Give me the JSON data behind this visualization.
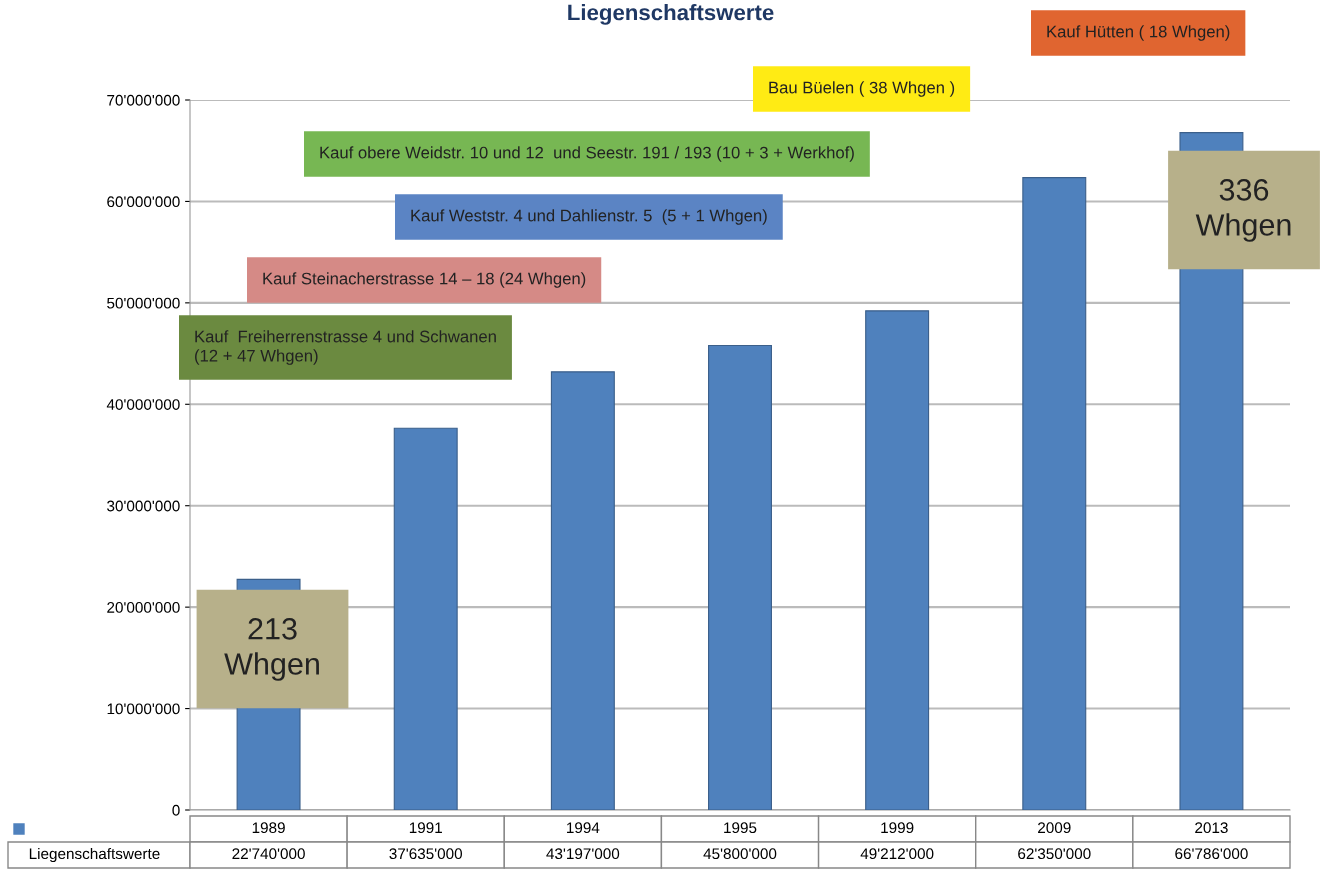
{
  "chart_data": {
    "type": "bar",
    "title": "Liegenschaftswerte",
    "categories": [
      "1989",
      "1991",
      "1994",
      "1995",
      "1999",
      "2009",
      "2013"
    ],
    "series": [
      {
        "name": "Liegenschaftswerte",
        "color": "#4f81bd",
        "values": [
          22740000,
          37635000,
          43197000,
          45800000,
          49212000,
          62350000,
          66786000
        ],
        "value_labels": [
          "22'740'000",
          "37'635'000",
          "43'197'000",
          "45'800'000",
          "49'212'000",
          "62'350'000",
          "66'786'000"
        ]
      }
    ],
    "ylim": [
      0,
      70000000
    ],
    "yticks": [
      0,
      {
        "value": 10000000,
        "label": "10'000'000"
      },
      {
        "value": 20000000,
        "label": "20'000'000"
      },
      {
        "value": 30000000,
        "label": "30'000'000"
      },
      {
        "value": 40000000,
        "label": "40'000'000"
      },
      {
        "value": 50000000,
        "label": "50'000'000"
      },
      {
        "value": 60000000,
        "label": "60'000'000"
      },
      {
        "value": 70000000,
        "label": "70'000'000"
      }
    ],
    "grid": "y",
    "legend": "bottom",
    "annotations": [
      "Kauf Hütten ( 18 Whgen)",
      "Bau Büelen ( 38 Whgen )",
      "Kauf obere Weidstr. 10 und 12  und Seestr. 191 / 193 (10 + 3 + Werkhof)",
      "Kauf Weststr. 4 und Dahlienstr. 5  (5 + 1 Whgen)",
      "Kauf Steinacherstrasse 14 – 18 (24 Whgen)",
      "Kauf  Freiherrenstrasse 4 und Schwanen\n(12 + 47 Whgen)",
      "213\nWhgen",
      "336\nWhgen"
    ]
  }
}
